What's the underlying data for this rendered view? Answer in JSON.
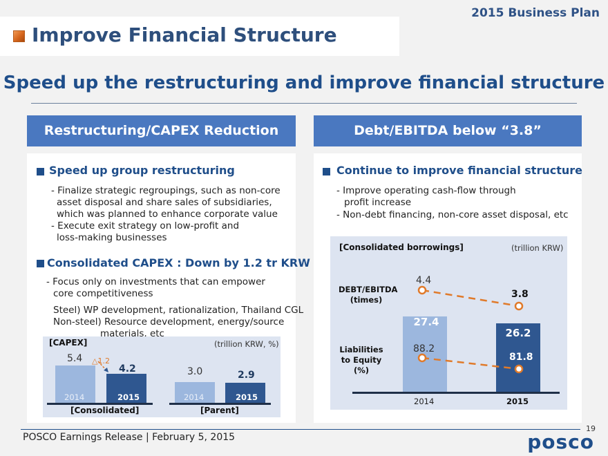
{
  "header": {
    "kicker": "2015 Business Plan",
    "title": "Improve Financial Structure",
    "subtitle": "Speed up the restructuring and improve financial structure"
  },
  "left": {
    "head": "Restructuring/CAPEX Reduction",
    "h1": "Speed up group restructuring",
    "l1": "- Finalize strategic regroupings, such as non-core",
    "l2": "asset disposal and share sales of subsidiaries,",
    "l3": "which was planned to enhance corporate value",
    "l4": "- Execute exit strategy on low-profit and",
    "l5": "loss-making businesses",
    "h2": "Consolidated CAPEX : Down by 1.2 tr KRW",
    "l6": "- Focus only on investments that can empower",
    "l7": "core competitiveness",
    "l8": "Steel) WP development, rationalization, Thailand CGL",
    "l9": "Non-steel) Resource development, energy/source",
    "l10": "materials, etc"
  },
  "right": {
    "head": "Debt/EBITDA  below “3.8”",
    "h1": "Continue to improve financial structure",
    "l1": "- Improve operating cash-flow through",
    "l2": "profit increase",
    "l3": "- Non-debt financing, non-core asset disposal, etc"
  },
  "chart_data": [
    {
      "type": "bar",
      "title": "[CAPEX]",
      "unit": "(trillion KRW, %)",
      "groups": [
        {
          "label": "[Consolidated]",
          "categories": [
            "2014",
            "2015"
          ],
          "values": [
            5.4,
            4.2
          ],
          "value_labels": [
            "5.4",
            "4.2"
          ]
        },
        {
          "label": "[Parent]",
          "categories": [
            "2014",
            "2015"
          ],
          "values": [
            3.0,
            2.9
          ],
          "value_labels": [
            "3.0",
            "2.9"
          ]
        }
      ],
      "annotation": "△1.2",
      "colors": {
        "y2014": "#9cb7de",
        "y2015": "#2f5790"
      }
    },
    {
      "type": "bar",
      "title": "[Consolidated borrowings]",
      "unit": "(trillion KRW)",
      "categories": [
        "2014",
        "2015"
      ],
      "values": [
        27.4,
        26.2
      ],
      "value_labels": [
        "27.4",
        "26.2"
      ],
      "overlay_lines": [
        {
          "name": "DEBT/EBITDA (times)",
          "label_line1": "DEBT/EBITDA",
          "label_line2": "(times)",
          "values": [
            4.4,
            3.8
          ],
          "value_labels": [
            "4.4",
            "3.8"
          ]
        },
        {
          "name": "Liabilities to Equity (%)",
          "label_line1": "Liabilities",
          "label_line2": "to Equity",
          "label_line3": "(%)",
          "values": [
            88.2,
            81.8
          ],
          "value_labels": [
            "88.2",
            "81.8"
          ]
        }
      ],
      "colors": {
        "y2014": "#9cb7de",
        "y2015": "#2f5790",
        "line": "#e07a2a"
      }
    }
  ],
  "footer": {
    "text": "POSCO Earnings Release  | February 5, 2015",
    "page": "19",
    "logo": "posco"
  }
}
